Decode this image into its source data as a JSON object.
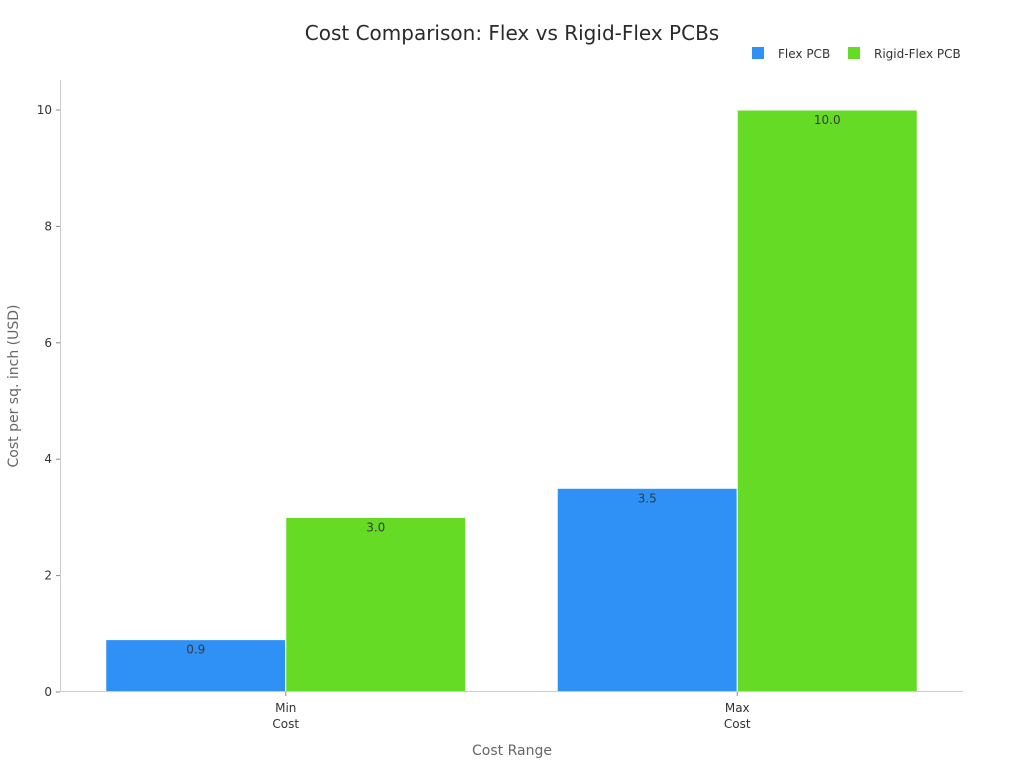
{
  "chart_data": {
    "type": "bar",
    "title": "Cost Comparison: Flex vs Rigid-Flex PCBs",
    "xlabel": "Cost Range",
    "ylabel": "Cost per sq. inch (USD)",
    "categories": [
      [
        "Min",
        "Cost"
      ],
      [
        "Max",
        "Cost"
      ]
    ],
    "series": [
      {
        "name": "Flex PCB",
        "color": "#2f91f5",
        "values": [
          0.9,
          3.5
        ],
        "labels": [
          "0.9",
          "3.5"
        ]
      },
      {
        "name": "Rigid-Flex PCB",
        "color": "#66db26",
        "values": [
          3.0,
          10.0
        ],
        "labels": [
          "3.0",
          "10.0"
        ]
      }
    ],
    "yticks": [
      0,
      2,
      4,
      6,
      8,
      10
    ],
    "ylim": [
      0,
      10
    ],
    "grid": false,
    "legend_position": "top-right"
  }
}
